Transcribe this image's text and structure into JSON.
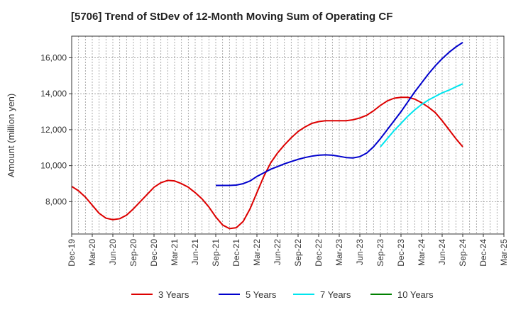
{
  "chart_data": {
    "type": "line",
    "title": "[5706]  Trend of StDev of 12-Month Moving Sum of Operating CF",
    "ylabel": "Amount (million yen)",
    "xlabel": "",
    "ylim": [
      6200,
      17200
    ],
    "yticks": [
      8000,
      10000,
      12000,
      14000,
      16000
    ],
    "ytick_labels": [
      "8,000",
      "10,000",
      "12,000",
      "14,000",
      "16,000"
    ],
    "x_start": "Dec-19",
    "x_end": "Mar-25",
    "x_tick_labels": [
      "Dec-19",
      "Mar-20",
      "Jun-20",
      "Sep-20",
      "Dec-20",
      "Mar-21",
      "Jun-21",
      "Sep-21",
      "Dec-21",
      "Mar-22",
      "Jun-22",
      "Sep-22",
      "Dec-22",
      "Mar-23",
      "Jun-23",
      "Sep-23",
      "Dec-23",
      "Mar-24",
      "Jun-24",
      "Sep-24",
      "Dec-24",
      "Mar-25"
    ],
    "grid": true,
    "legend_position": "bottom",
    "series": [
      {
        "name": "3 Years",
        "color": "#dd0000",
        "x": [
          "Dec-19",
          "Jan-20",
          "Feb-20",
          "Mar-20",
          "Apr-20",
          "May-20",
          "Jun-20",
          "Jul-20",
          "Aug-20",
          "Sep-20",
          "Oct-20",
          "Nov-20",
          "Dec-20",
          "Jan-21",
          "Feb-21",
          "Mar-21",
          "Apr-21",
          "May-21",
          "Jun-21",
          "Jul-21",
          "Aug-21",
          "Sep-21",
          "Oct-21",
          "Nov-21",
          "Dec-21",
          "Jan-22",
          "Feb-22",
          "Mar-22",
          "Apr-22",
          "May-22",
          "Jun-22",
          "Jul-22",
          "Aug-22",
          "Sep-22",
          "Oct-22",
          "Nov-22",
          "Dec-22",
          "Jan-23",
          "Feb-23",
          "Mar-23",
          "Apr-23",
          "May-23",
          "Jun-23",
          "Jul-23",
          "Aug-23",
          "Sep-23",
          "Oct-23",
          "Nov-23",
          "Dec-23",
          "Jan-24",
          "Feb-24",
          "Mar-24",
          "Apr-24",
          "May-24",
          "Jun-24",
          "Jul-24",
          "Aug-24",
          "Sep-24"
        ],
        "values": [
          8850,
          8600,
          8250,
          7800,
          7350,
          7080,
          7000,
          7050,
          7250,
          7600,
          8000,
          8400,
          8800,
          9050,
          9180,
          9150,
          9000,
          8800,
          8500,
          8150,
          7700,
          7150,
          6700,
          6500,
          6550,
          6900,
          7600,
          8500,
          9400,
          10150,
          10700,
          11150,
          11550,
          11900,
          12150,
          12350,
          12450,
          12500,
          12500,
          12500,
          12500,
          12550,
          12650,
          12800,
          13050,
          13350,
          13600,
          13750,
          13800,
          13800,
          13700,
          13500,
          13250,
          12950,
          12500,
          12000,
          11500,
          11050
        ]
      },
      {
        "name": "5 Years",
        "color": "#0000cc",
        "x": [
          "Sep-21",
          "Oct-21",
          "Nov-21",
          "Dec-21",
          "Jan-22",
          "Feb-22",
          "Mar-22",
          "Apr-22",
          "May-22",
          "Jun-22",
          "Jul-22",
          "Aug-22",
          "Sep-22",
          "Oct-22",
          "Nov-22",
          "Dec-22",
          "Jan-23",
          "Feb-23",
          "Mar-23",
          "Apr-23",
          "May-23",
          "Jun-23",
          "Jul-23",
          "Aug-23",
          "Sep-23",
          "Oct-23",
          "Nov-23",
          "Dec-23",
          "Jan-24",
          "Feb-24",
          "Mar-24",
          "Apr-24",
          "May-24",
          "Jun-24",
          "Jul-24",
          "Aug-24",
          "Sep-24"
        ],
        "values": [
          8900,
          8900,
          8900,
          8920,
          9000,
          9150,
          9400,
          9600,
          9800,
          9950,
          10100,
          10230,
          10350,
          10450,
          10530,
          10580,
          10600,
          10580,
          10520,
          10450,
          10430,
          10500,
          10700,
          11050,
          11500,
          12000,
          12500,
          13000,
          13550,
          14100,
          14600,
          15100,
          15550,
          15950,
          16300,
          16600,
          16850
        ]
      },
      {
        "name": "7 Years",
        "color": "#00e5ee",
        "x": [
          "Sep-23",
          "Oct-23",
          "Nov-23",
          "Dec-23",
          "Jan-24",
          "Feb-24",
          "Mar-24",
          "Apr-24",
          "May-24",
          "Jun-24",
          "Jul-24",
          "Aug-24",
          "Sep-24"
        ],
        "values": [
          11050,
          11500,
          11950,
          12350,
          12750,
          13100,
          13400,
          13650,
          13850,
          14050,
          14200,
          14380,
          14550
        ]
      },
      {
        "name": "10 Years",
        "color": "#008000",
        "x": [],
        "values": []
      }
    ]
  }
}
